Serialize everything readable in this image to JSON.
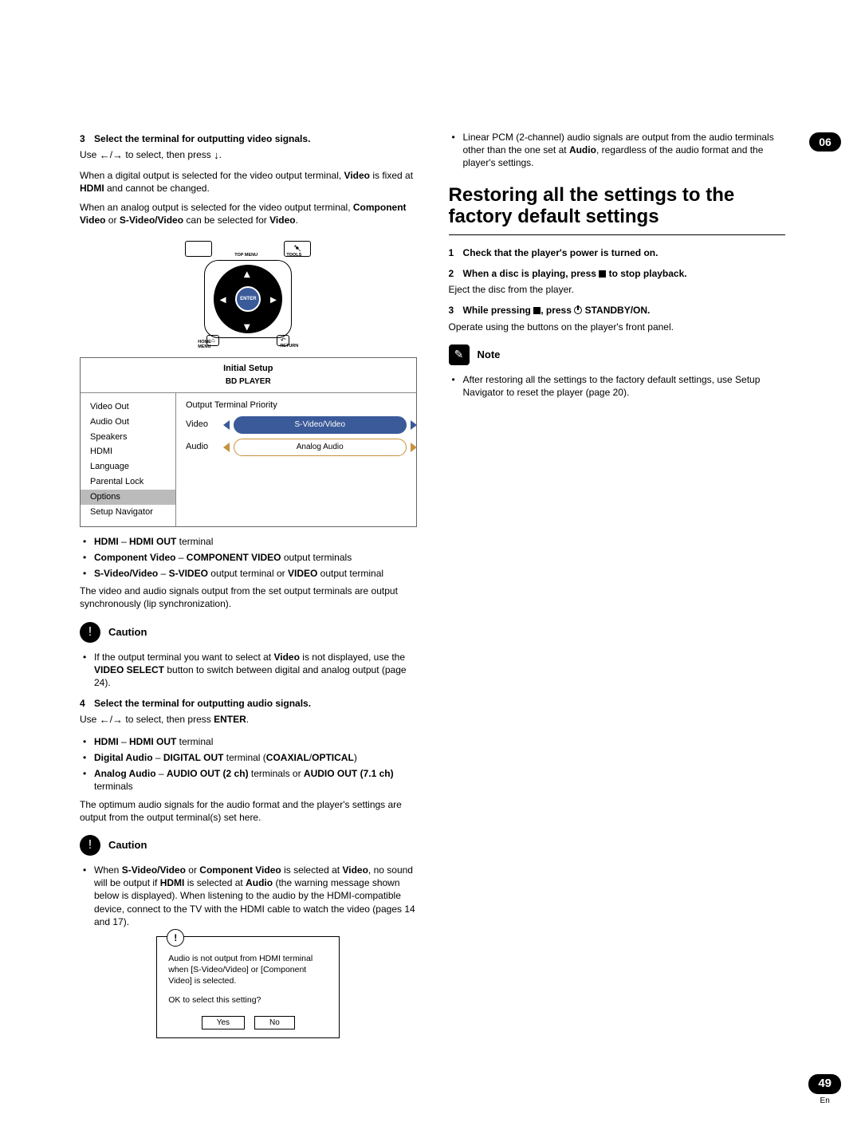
{
  "page_number": "49",
  "page_lang": "En",
  "chapter_tab": "06",
  "left": {
    "step3": {
      "num": "3",
      "title": "Select the terminal for outputting video signals.",
      "use_pre": "Use ",
      "use_mid": " to select, then press ",
      "use_post": "."
    },
    "p1a": "When a digital output is selected for the video output terminal, ",
    "p1b": "Video",
    "p1c": " is fixed at ",
    "p1d": "HDMI",
    "p1e": " and cannot be changed.",
    "p2a": "When an analog output is selected for the video output terminal, ",
    "p2b": "Component Video",
    "p2c": " or ",
    "p2d": "S-Video/Video",
    "p2e": " can be selected for ",
    "p2f": "Video",
    "p2g": ".",
    "remote": {
      "top_menu": "TOP MENU",
      "tools": "TOOLS",
      "enter": "ENTER",
      "home_menu": "HOME\nMENU",
      "return": "RETURN",
      "home_glyph": "⌂",
      "return_glyph": "↶"
    },
    "osd": {
      "title": "Initial Setup",
      "subtitle": "BD PLAYER",
      "menu": [
        "Video Out",
        "Audio Out",
        "Speakers",
        "HDMI",
        "Language",
        "Parental Lock",
        "Options",
        "Setup Navigator"
      ],
      "highlighted_index": 6,
      "right_header": "Output Terminal Priority",
      "rows": [
        {
          "label": "Video",
          "value": "S-Video/Video",
          "selected": true
        },
        {
          "label": "Audio",
          "value": "Analog Audio",
          "selected": false
        }
      ]
    },
    "term_list": [
      {
        "b1": "HDMI",
        "sep": " – ",
        "b2": "HDMI OUT",
        "rest": " terminal"
      },
      {
        "b1": "Component Video",
        "sep": " – ",
        "b2": "COMPONENT VIDEO",
        "rest": " output terminals"
      },
      {
        "b1": "S-Video/Video",
        "sep": " – ",
        "b2": "S-VIDEO",
        "rest": " output terminal or ",
        "b3": "VIDEO",
        "rest2": " output terminal"
      }
    ],
    "p3": "The video and audio signals output from the set output terminals are output synchronously (lip synchronization).",
    "caution1": "Caution",
    "caution1_body_a": "If the output terminal you want to select at ",
    "caution1_body_b": "Video",
    "caution1_body_c": " is not displayed, use the ",
    "caution1_body_d": "VIDEO SELECT",
    "caution1_body_e": " button to switch between digital and analog output (page 24).",
    "step4": {
      "num": "4",
      "title": "Select the terminal for outputting audio signals.",
      "use_pre": "Use ",
      "use_mid": " to select, then press ",
      "enter": "ENTER",
      "use_post": "."
    },
    "term_list2": [
      {
        "b1": "HDMI",
        "sep": " – ",
        "b2": "HDMI OUT",
        "rest": " terminal"
      },
      {
        "b1": "Digital Audio",
        "sep": " – ",
        "b2": "DIGITAL OUT",
        "rest": " terminal (",
        "b3": "COAXIAL",
        "sep2": "/",
        "b4": "OPTICAL",
        "rest2": ")"
      },
      {
        "b1": "Analog Audio",
        "sep": " – ",
        "b2": "AUDIO OUT (2 ch)",
        "rest": " terminals or ",
        "b3": "AUDIO OUT (7.1 ch)",
        "rest2": " terminals"
      }
    ],
    "p4": "The optimum audio signals for the audio format and the player's settings are output from the output terminal(s) set here.",
    "caution2": "Caution",
    "caution2_body": [
      "When ",
      "S-Video/Video",
      " or ",
      "Component Video",
      " is selected at ",
      "Video",
      ", no sound will be output if ",
      "HDMI",
      " is selected at ",
      "Audio",
      " (the warning message shown below is displayed). When listening to the audio by the HDMI-compatible device, connect to the TV with the HDMI cable to watch the video (pages 14 and 17)."
    ],
    "dialog": {
      "msg": "Audio is not output from HDMI terminal when [S-Video/Video] or [Component Video] is selected.",
      "q": "OK to select this setting?",
      "yes": "Yes",
      "no": "No"
    }
  },
  "right": {
    "top_bullet": [
      "Linear PCM (2-channel) audio signals are output from the audio terminals other than the one set at ",
      "Audio",
      ", regardless of the audio format and the player's settings."
    ],
    "heading": "Restoring all the settings to the factory default settings",
    "s1": {
      "num": "1",
      "title": "Check that the player's power is turned on."
    },
    "s2": {
      "num": "2",
      "title_a": "When a disc is playing, press ",
      "title_b": " to stop playback.",
      "body": "Eject the disc from the player."
    },
    "s3": {
      "num": "3",
      "title_a": "While pressing ",
      "title_b": ", press ",
      "title_c": " STANDBY/ON.",
      "body": "Operate using the buttons on the player's front panel."
    },
    "note": "Note",
    "note_body": "After restoring all the settings to the factory default settings, use Setup Navigator to reset the player (page 20)."
  }
}
